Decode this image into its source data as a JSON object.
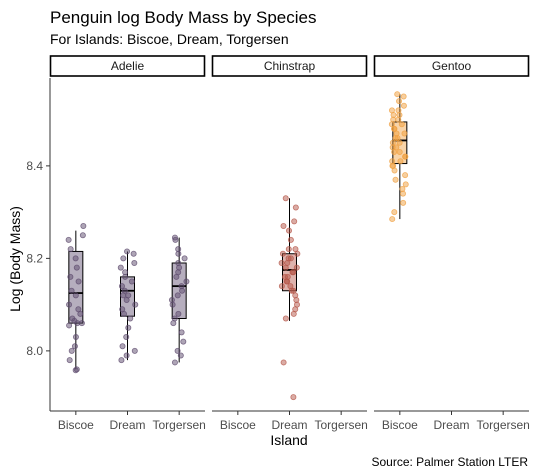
{
  "chart_data": {
    "type": "boxplot",
    "title": "Penguin log Body Mass by Species",
    "subtitle": "For Islands: Biscoe, Dream, Torgersen",
    "xlabel": "Island",
    "ylabel": "Log (Body Mass)",
    "caption": "Source: Palmer Station LTER",
    "x_categories": [
      "Biscoe",
      "Dream",
      "Torgersen"
    ],
    "y_ticks": [
      8.0,
      8.2,
      8.4
    ],
    "y_tick_labels": [
      "8.0",
      "8.2",
      "8.4"
    ],
    "ylim": [
      7.87,
      8.59
    ],
    "grid": false,
    "facets": [
      {
        "label": "Adelie",
        "color": "#5e4b6e",
        "boxes": [
          {
            "island": "Biscoe",
            "min": 7.96,
            "q1": 8.06,
            "median": 8.125,
            "q3": 8.215,
            "max": 8.26,
            "points": [
              7.958,
              7.96,
              7.98,
              8.0,
              8.01,
              8.03,
              8.055,
              8.06,
              8.06,
              8.065,
              8.07,
              8.08,
              8.09,
              8.1,
              8.12,
              8.13,
              8.15,
              8.16,
              8.18,
              8.2,
              8.22,
              8.24,
              8.25,
              8.27
            ]
          },
          {
            "island": "Dream",
            "min": 7.98,
            "q1": 8.075,
            "median": 8.13,
            "q3": 8.16,
            "max": 8.215,
            "points": [
              7.98,
              7.99,
              8.0,
              8.01,
              8.03,
              8.05,
              8.07,
              8.08,
              8.09,
              8.1,
              8.11,
              8.12,
              8.12,
              8.13,
              8.14,
              8.15,
              8.16,
              8.17,
              8.18,
              8.19,
              8.2,
              8.21,
              8.215
            ]
          },
          {
            "island": "Torgersen",
            "min": 7.975,
            "q1": 8.07,
            "median": 8.14,
            "q3": 8.19,
            "max": 8.245,
            "points": [
              7.975,
              7.99,
              8.0,
              8.02,
              8.04,
              8.06,
              8.07,
              8.08,
              8.1,
              8.11,
              8.12,
              8.13,
              8.14,
              8.15,
              8.16,
              8.17,
              8.18,
              8.19,
              8.2,
              8.21,
              8.22,
              8.24,
              8.245
            ]
          }
        ]
      },
      {
        "label": "Chinstrap",
        "color": "#b5574a",
        "boxes": [
          {
            "island": "Dream",
            "min": 8.065,
            "q1": 8.13,
            "median": 8.175,
            "q3": 8.21,
            "max": 8.33,
            "points": [
              7.9,
              7.975,
              8.07,
              8.08,
              8.09,
              8.1,
              8.11,
              8.12,
              8.13,
              8.13,
              8.14,
              8.14,
              8.15,
              8.15,
              8.16,
              8.16,
              8.17,
              8.17,
              8.18,
              8.18,
              8.19,
              8.19,
              8.2,
              8.2,
              8.21,
              8.21,
              8.22,
              8.22,
              8.24,
              8.26,
              8.27,
              8.28,
              8.31,
              8.33
            ]
          }
        ]
      },
      {
        "label": "Gentoo",
        "color": "#f0a040",
        "boxes": [
          {
            "island": "Biscoe",
            "min": 8.285,
            "q1": 8.405,
            "median": 8.455,
            "q3": 8.495,
            "max": 8.555,
            "points": [
              8.285,
              8.3,
              8.32,
              8.34,
              8.35,
              8.36,
              8.37,
              8.38,
              8.39,
              8.4,
              8.4,
              8.41,
              8.41,
              8.42,
              8.42,
              8.43,
              8.43,
              8.44,
              8.44,
              8.45,
              8.45,
              8.46,
              8.46,
              8.47,
              8.47,
              8.48,
              8.48,
              8.49,
              8.49,
              8.5,
              8.5,
              8.51,
              8.51,
              8.52,
              8.52,
              8.53,
              8.54,
              8.55,
              8.555
            ]
          }
        ]
      }
    ]
  }
}
